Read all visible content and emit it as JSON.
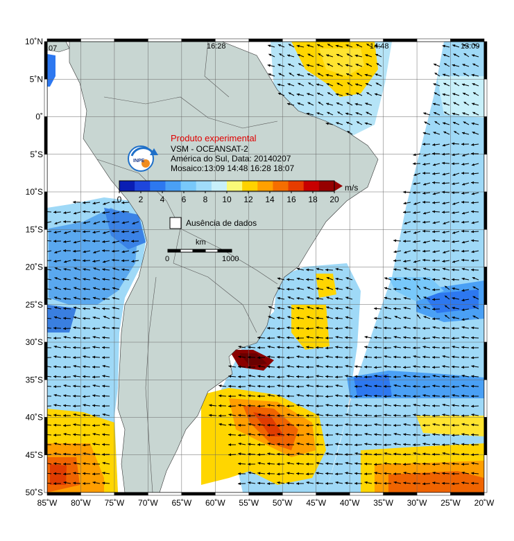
{
  "map": {
    "info": {
      "experimental": "Produto experimental",
      "sensor": "VSM - OCEANSAT-2",
      "region_date": "América do Sul, Data: 20140207",
      "mosaic": "Mosaico:13:09 14:48 16:28 18:07"
    },
    "logo_text": "INPE",
    "pass_times": [
      "07",
      "16:28",
      "14:48",
      "13:09"
    ],
    "colorbar": {
      "unit": "m/s",
      "ticks": [
        "0",
        "2",
        "4",
        "6",
        "8",
        "10",
        "12",
        "14",
        "16",
        "18",
        "20"
      ],
      "colors": [
        "#0a1eb4",
        "#1e46dc",
        "#2d78f0",
        "#4aa0f5",
        "#78c8fa",
        "#a0dcfa",
        "#c8f0fa",
        "#fafa78",
        "#ffd200",
        "#ffa000",
        "#f56e00",
        "#e63c00",
        "#c80000",
        "#960000"
      ]
    },
    "legend": {
      "no_data": "Ausência de dados"
    },
    "scale": {
      "label": "km",
      "start": "0",
      "end": "1000"
    },
    "lat_labels": [
      "10˚N",
      "5˚N",
      "0˚",
      "5˚S",
      "10˚S",
      "15˚S",
      "20˚S",
      "25˚S",
      "30˚S",
      "35˚S",
      "40˚S",
      "45˚S",
      "50˚S"
    ],
    "lon_labels": [
      "85˚W",
      "80˚W",
      "75˚W",
      "70˚W",
      "65˚W",
      "60˚W",
      "55˚W",
      "50˚W",
      "45˚W",
      "40˚W",
      "35˚W",
      "30˚W",
      "25˚W",
      "20˚W"
    ],
    "colors": {
      "land": "#c8d6d2",
      "ocean_nodata": "#ffffff",
      "border": "#000000"
    }
  }
}
